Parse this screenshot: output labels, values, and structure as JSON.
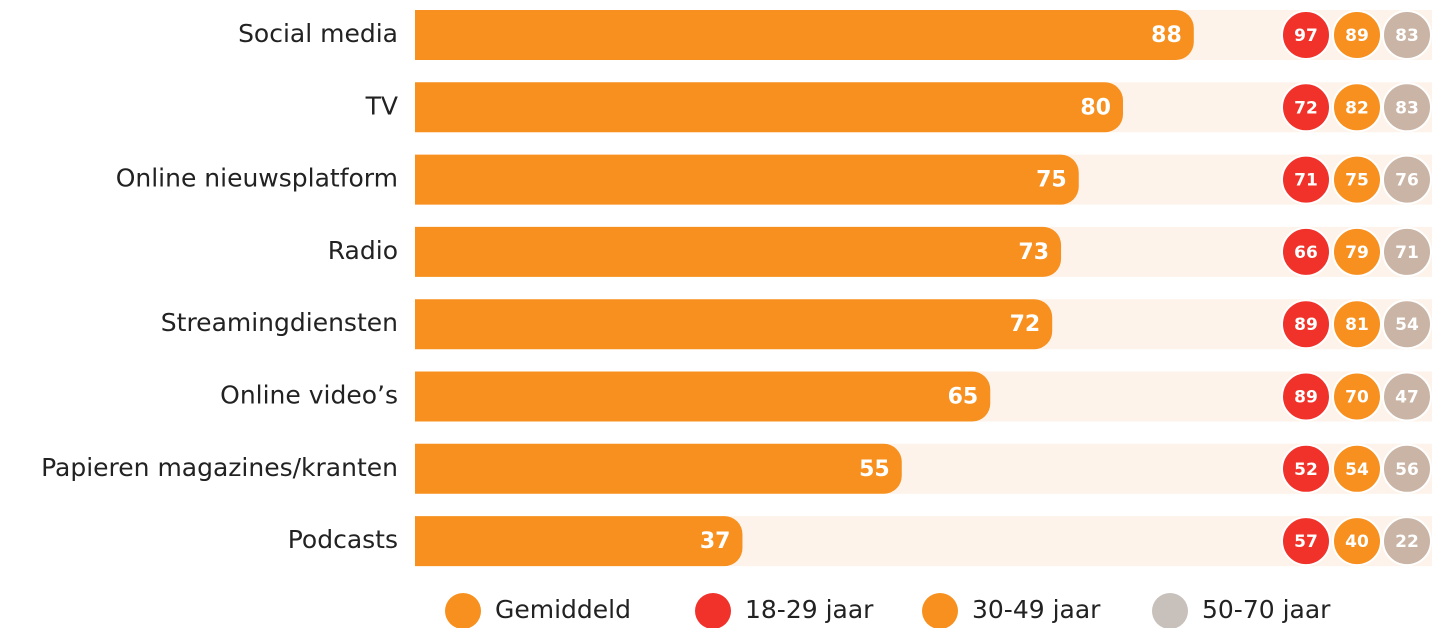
{
  "chart_data": {
    "type": "bar",
    "orientation": "horizontal",
    "categories": [
      "Social media",
      "TV",
      "Online nieuwsplatform",
      "Radio",
      "Streamingdiensten",
      "Online video’s",
      "Papieren magazines/kranten",
      "Podcasts"
    ],
    "xlim": [
      0,
      100
    ],
    "series": [
      {
        "name": "Gemiddeld",
        "color": "#f7901e",
        "values": [
          88,
          80,
          75,
          73,
          72,
          65,
          55,
          37
        ]
      },
      {
        "name": "18-29 jaar",
        "color": "#f0322a",
        "values": [
          97,
          72,
          71,
          66,
          89,
          89,
          52,
          57
        ]
      },
      {
        "name": "30-49 jaar",
        "color": "#f7901e",
        "values": [
          89,
          82,
          75,
          79,
          81,
          70,
          54,
          40
        ]
      },
      {
        "name": "50-70 jaar",
        "color": "#c9b4a5",
        "values": [
          83,
          83,
          76,
          71,
          54,
          47,
          56,
          22
        ]
      }
    ]
  }
}
